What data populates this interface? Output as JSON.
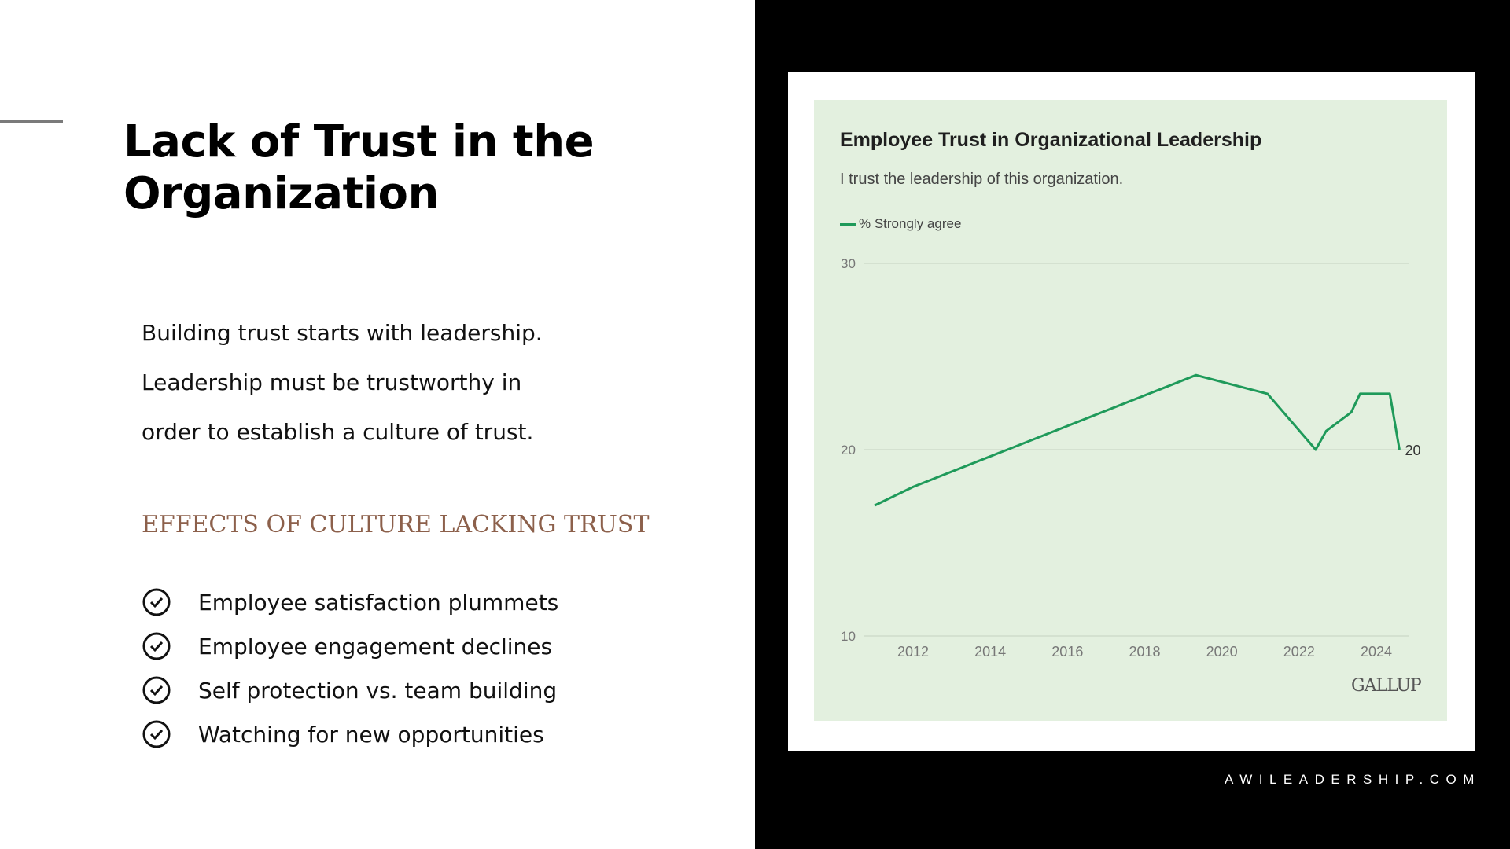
{
  "slide": {
    "title": "Lack of Trust in the Organization",
    "body_lines": [
      "Building trust starts with leadership.",
      "Leadership must be trustworthy in",
      "order to establish a culture of trust."
    ],
    "effects_heading": "EFFECTS OF CULTURE LACKING TRUST",
    "effects": [
      {
        "icon": "check-circle-icon",
        "text": "Employee satisfaction plummets"
      },
      {
        "icon": "check-circle-icon",
        "text": "Employee engagement declines"
      },
      {
        "icon": "check-circle-icon",
        "text": "Self protection vs. team building"
      },
      {
        "icon": "check-circle-icon",
        "text": "Watching for new opportunities"
      }
    ],
    "footer": "AWILEADERSHIP.COM",
    "colors": {
      "heading_accent": "#8c604b",
      "line": "#1f9a5a",
      "chart_bg": "#e3f0df"
    }
  },
  "chart_data": {
    "type": "line",
    "title": "Employee Trust in Organizational Leadership",
    "subtitle": "I trust the leadership of this organization.",
    "legend": [
      "% Strongly agree"
    ],
    "legend_placement": "top-left",
    "source_logo": "GALLUP",
    "xlabel": "",
    "ylabel": "",
    "xticks": [
      "2012",
      "2014",
      "2016",
      "2018",
      "2020",
      "2022",
      "2024"
    ],
    "yticks": [
      "10",
      "20",
      "30"
    ],
    "xlim": [
      2010.6,
      2025.1
    ],
    "ylim": [
      10,
      30
    ],
    "grid": true,
    "series": [
      {
        "name": "% Strongly agree",
        "x": [
          2011.0,
          2012.0,
          2019.33,
          2021.18,
          2022.43,
          2022.7,
          2023.35,
          2023.58,
          2024.35,
          2024.6
        ],
        "y": [
          17,
          18,
          24,
          23,
          20,
          21,
          22,
          23,
          23,
          20
        ]
      }
    ],
    "end_label": "20"
  }
}
